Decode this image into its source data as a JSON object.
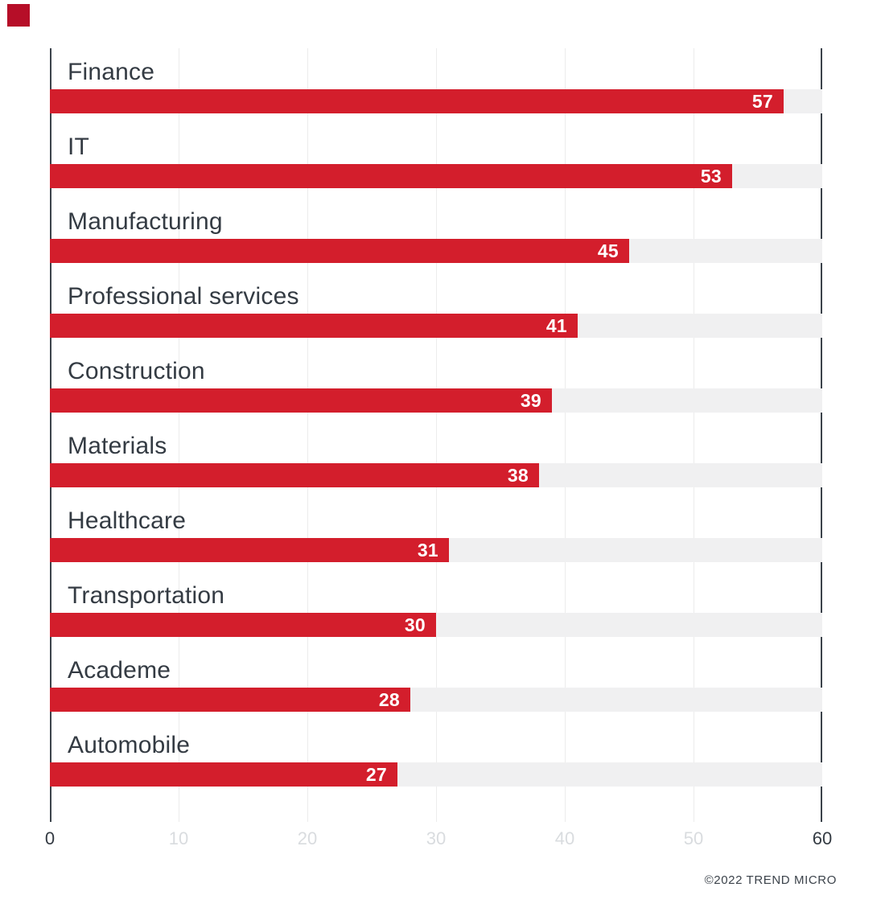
{
  "page": {
    "credit": "©2022 TREND MICRO"
  },
  "brand": {
    "corner_square_color": "#b60e28"
  },
  "chart_data": {
    "type": "bar",
    "orientation": "horizontal",
    "title": "",
    "xlabel": "",
    "ylabel": "",
    "categories": [
      "Finance",
      "IT",
      "Manufacturing",
      "Professional services",
      "Construction",
      "Materials",
      "Healthcare",
      "Transportation",
      "Academe",
      "Automobile"
    ],
    "values": [
      57,
      53,
      45,
      41,
      39,
      38,
      31,
      30,
      28,
      27
    ],
    "xlim": [
      0,
      60
    ],
    "xticks": [
      0,
      10,
      20,
      30,
      40,
      50,
      60
    ],
    "grid": true,
    "value_labels": "inside-end",
    "bar_color": "#d31e2c",
    "track_color": "#f0f0f1",
    "gridline_color": "#ececec",
    "axis_color": "#3c434b",
    "label_color": "#343b43",
    "tick_dark_color": "#343b43",
    "tick_light_color": "#d9dcdf"
  }
}
